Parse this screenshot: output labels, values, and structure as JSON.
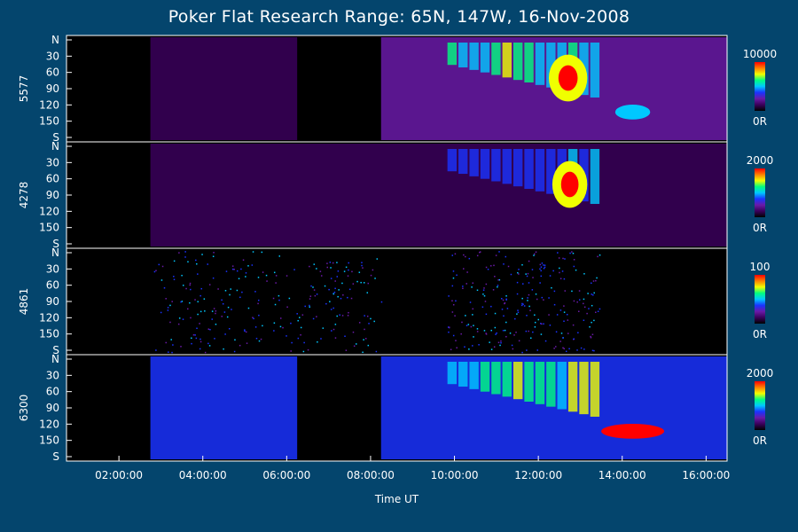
{
  "chart_data": {
    "type": "heatmap",
    "title": "Poker Flat Research Range: 65N, 147W, 16-Nov-2008",
    "xlabel": "Time UT",
    "x_ticks": [
      "02:00:00",
      "04:00:00",
      "06:00:00",
      "08:00:00",
      "10:00:00",
      "12:00:00",
      "14:00:00",
      "16:00:00"
    ],
    "x_range": [
      "00:45:00",
      "16:30:00"
    ],
    "y_ticks": [
      "N",
      "30",
      "60",
      "90",
      "120",
      "150",
      "S"
    ],
    "y_range": [
      "N",
      "S"
    ],
    "panels": [
      {
        "name": "5577",
        "scale_max": "10000",
        "scale_min": "0R",
        "features": [
          {
            "from": "02:45",
            "to": "06:15",
            "level": 0.12,
            "kind": "haze"
          },
          {
            "from": "08:15",
            "to": "16:30",
            "level": 0.2,
            "kind": "haze"
          },
          {
            "from": "09:50",
            "to": "13:30",
            "level": 0.75,
            "kind": "arc"
          },
          {
            "from": "12:15",
            "to": "13:10",
            "level": 1.0,
            "kind": "core"
          },
          {
            "from": "13:50",
            "to": "14:40",
            "level": 0.55,
            "kind": "spot"
          }
        ]
      },
      {
        "name": "4278",
        "scale_max": "2000",
        "scale_min": "0R",
        "features": [
          {
            "from": "02:45",
            "to": "16:30",
            "level": 0.12,
            "kind": "haze"
          },
          {
            "from": "09:50",
            "to": "13:30",
            "level": 0.55,
            "kind": "arc"
          },
          {
            "from": "12:20",
            "to": "13:10",
            "level": 1.0,
            "kind": "core"
          }
        ]
      },
      {
        "name": "4861",
        "scale_max": "100",
        "scale_min": "0R",
        "features": [
          {
            "from": "02:45",
            "to": "08:15",
            "level": 0.35,
            "kind": "speckle"
          },
          {
            "from": "09:50",
            "to": "13:30",
            "level": 0.3,
            "kind": "speckle"
          }
        ]
      },
      {
        "name": "6300",
        "scale_max": "2000",
        "scale_min": "0R",
        "features": [
          {
            "from": "02:45",
            "to": "06:15",
            "level": 0.35,
            "kind": "haze"
          },
          {
            "from": "08:15",
            "to": "16:30",
            "level": 0.4,
            "kind": "haze"
          },
          {
            "from": "09:50",
            "to": "13:30",
            "level": 0.75,
            "kind": "arc"
          },
          {
            "from": "13:30",
            "to": "15:00",
            "level": 1.0,
            "kind": "spot"
          }
        ]
      }
    ],
    "colormap": [
      "#000000",
      "#3a005a",
      "#6a1aa8",
      "#1a33ff",
      "#00c8ff",
      "#00ff80",
      "#f0ff00",
      "#ff8000",
      "#ff0000"
    ],
    "grid": false,
    "legend": "colorbar-right"
  }
}
